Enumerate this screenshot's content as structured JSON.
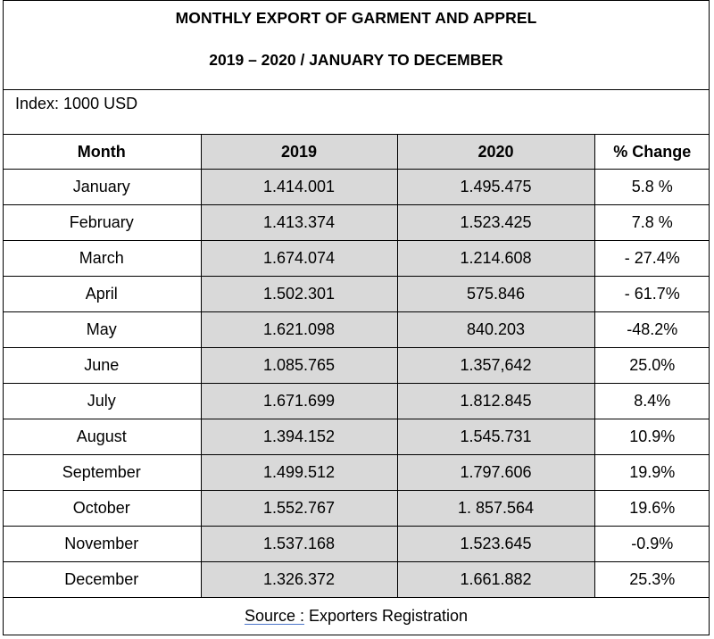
{
  "title": {
    "line1": "MONTHLY EXPORT OF GARMENT AND APPREL",
    "line2": "2019 – 2020 / JANUARY TO DECEMBER"
  },
  "index_label": "Index: 1000 USD",
  "table": {
    "headers": [
      "Month",
      "2019",
      "2020",
      "% Change"
    ],
    "rows": [
      {
        "month": "January",
        "y2019": "1.414.001",
        "y2020": "1.495.475",
        "change": "5.8 %"
      },
      {
        "month": "February",
        "y2019": "1.413.374",
        "y2020": "1.523.425",
        "change": "7.8 %"
      },
      {
        "month": "March",
        "y2019": "1.674.074",
        "y2020": "1.214.608",
        "change": "- 27.4%"
      },
      {
        "month": "April",
        "y2019": "1.502.301",
        "y2020": "575.846",
        "change": "- 61.7%"
      },
      {
        "month": "May",
        "y2019": "1.621.098",
        "y2020": "840.203",
        "change": "-48.2%"
      },
      {
        "month": "June",
        "y2019": "1.085.765",
        "y2020": "1.357,642",
        "change": "25.0%"
      },
      {
        "month": "July",
        "y2019": "1.671.699",
        "y2020": "1.812.845",
        "change": "8.4%"
      },
      {
        "month": "August",
        "y2019": "1.394.152",
        "y2020": "1.545.731",
        "change": "10.9%"
      },
      {
        "month": "September",
        "y2019": "1.499.512",
        "y2020": "1.797.606",
        "change": "19.9%"
      },
      {
        "month": "October",
        "y2019": "1.552.767",
        "y2020": "1. 857.564",
        "change": "19.6%"
      },
      {
        "month": "November",
        "y2019": "1.537.168",
        "y2020": "1.523.645",
        "change": "-0.9%"
      },
      {
        "month": "December",
        "y2019": "1.326.372",
        "y2020": "1.661.882",
        "change": "25.3%"
      }
    ]
  },
  "source": {
    "label": "Source :",
    "text": " Exporters Registration"
  },
  "colors": {
    "shaded_column": "#d9d9d9",
    "source_underline": "#4a74c9"
  }
}
